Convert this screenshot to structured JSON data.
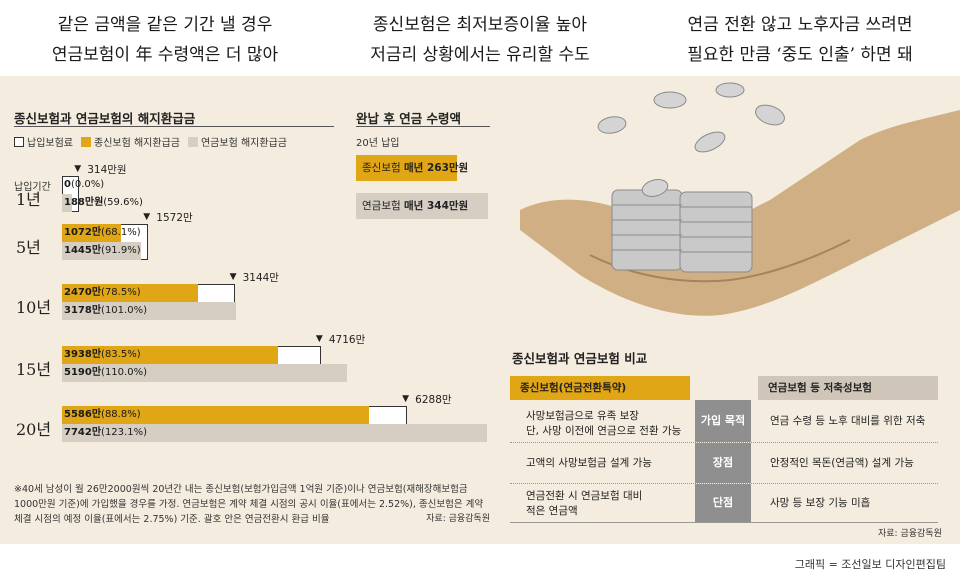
{
  "headlines": [
    {
      "line1": "같은 금액을 같은 기간 낼 경우",
      "line2": "연금보험이 年 수령액은 더 많아"
    },
    {
      "line1": "종신보험은 최저보증이율 높아",
      "line2": "저금리 상황에서는 유리할 수도"
    },
    {
      "line1": "연금 전환 않고 노후자금 쓰려면",
      "line2": "필요한 만큼 ‘중도 인출’ 하면 돼"
    }
  ],
  "colors": {
    "premium": "#ffffff",
    "whole_life": "#e0a616",
    "annuity": "#d6cec3",
    "panel": "#f4ecde"
  },
  "chart_data": [
    {
      "type": "bar",
      "title": "종신보험과 연금보험의 해지환급금",
      "legend": [
        "납입보험료",
        "종신보험 해지환급금",
        "연금보험 해지환급금"
      ],
      "ylabel": "납입기간",
      "categories": [
        "1년",
        "5년",
        "10년",
        "15년",
        "20년"
      ],
      "premium_labels": [
        "314만원",
        "1572만",
        "3144만",
        "4716만",
        "6288만"
      ],
      "series": [
        {
          "name": "납입보험료",
          "values": [
            314,
            1572,
            3144,
            4716,
            6288
          ]
        },
        {
          "name": "종신보험 해지환급금",
          "values": [
            0,
            1072,
            2470,
            3938,
            5586
          ],
          "labels": [
            [
              "0",
              "(0.0%)"
            ],
            [
              "1072만",
              "(68.1%)"
            ],
            [
              "2470만",
              "(78.5%)"
            ],
            [
              "3938만",
              "(83.5%)"
            ],
            [
              "5586만",
              "(88.8%)"
            ]
          ]
        },
        {
          "name": "연금보험 해지환급금",
          "values": [
            188,
            1445,
            3178,
            5190,
            7742
          ],
          "labels": [
            [
              "188만원",
              "(59.6%)"
            ],
            [
              "1445만",
              "(91.9%)"
            ],
            [
              "3178만",
              "(101.0%)"
            ],
            [
              "5190만",
              "(110.0%)"
            ],
            [
              "7742만",
              "(123.1%)"
            ]
          ]
        }
      ]
    },
    {
      "type": "bar",
      "title": "완납 후 연금 수령액",
      "subtitle": "20년 납입",
      "categories": [
        "종신보험",
        "연금보험"
      ],
      "values": [
        263,
        344
      ],
      "labels": [
        {
          "prefix": "종신보험 ",
          "bold": "매년 263만원"
        },
        {
          "prefix": "연금보험 ",
          "bold": "매년 344만원"
        }
      ]
    }
  ],
  "note": "※40세 남성이 월 26만2000원씩 20년간 내는 종신보험(보험가입금액 1억원 기준)이나 연금보험(재해장해보험금 1000만원 기준)에 가입했을 경우를 가정. 연금보험은 계약 체결 시점의 공시 이율(표에서는 2.52%), 종신보험은 계약 체결 시점의 예정 이율(표에서는 2.75%) 기준. 괄호 안은 연금전환시 환급 비율",
  "source_left": "자료: 금융감독원",
  "table": {
    "title": "종신보험과 연금보험 비교",
    "col_left": "종신보험(연금전환특약)",
    "col_right": "연금보험 등 저축성보험",
    "rows": [
      {
        "left": "사망보험금으로 유족 보장\n단, 사망 이전에 연금으로 전환 가능",
        "mid": "가입 목적",
        "right": "연금 수령 등 노후 대비를 위한 저축"
      },
      {
        "left": "고액의 사망보험금 설계 가능",
        "mid": "장점",
        "right": "안정적인 목돈(연금액) 설계 가능"
      },
      {
        "left": "연금전환 시 연금보험 대비\n적은 연금액",
        "mid": "단점",
        "right": "사망 등 보장 기능 미흡"
      }
    ],
    "source": "자료: 금융감독원"
  },
  "credit": "그래픽 = 조선일보 디자인편집팀"
}
